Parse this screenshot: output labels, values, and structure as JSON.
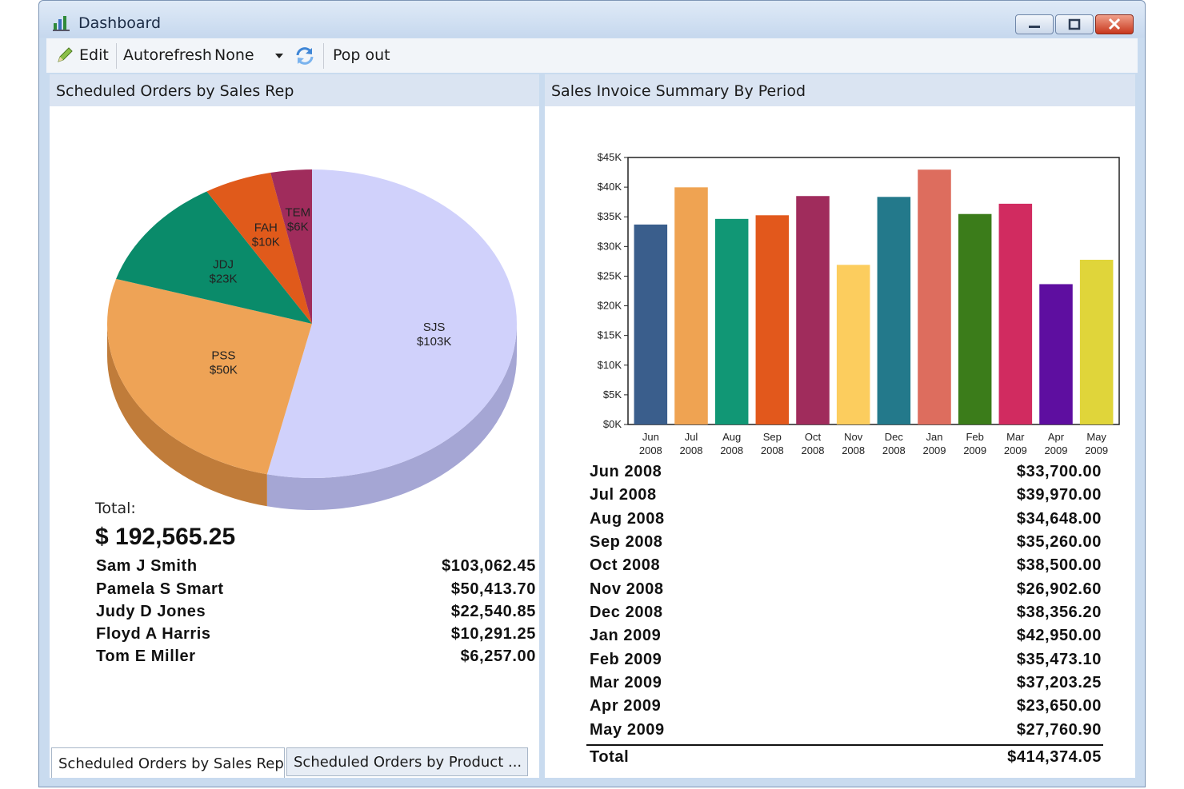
{
  "window": {
    "title": "Dashboard"
  },
  "toolbar": {
    "edit_label": "Edit",
    "autorefresh_label": "Autorefresh",
    "autorefresh_value": "None",
    "popout_label": "Pop out"
  },
  "left_panel": {
    "title": "Scheduled Orders by Sales Rep",
    "total_label": "Total:",
    "total_value": "$ 192,565.25",
    "rows": [
      {
        "name": "Sam J Smith",
        "amount": "$103,062.45"
      },
      {
        "name": "Pamela S Smart",
        "amount": "$50,413.70"
      },
      {
        "name": "Judy D Jones",
        "amount": "$22,540.85"
      },
      {
        "name": "Floyd A Harris",
        "amount": "$10,291.25"
      },
      {
        "name": "Tom E Miller",
        "amount": "$6,257.00"
      }
    ]
  },
  "right_panel": {
    "title": "Sales Invoice Summary By Period",
    "rows": [
      {
        "period": "Jun 2008",
        "amount": "$33,700.00"
      },
      {
        "period": "Jul 2008",
        "amount": "$39,970.00"
      },
      {
        "period": "Aug 2008",
        "amount": "$34,648.00"
      },
      {
        "period": "Sep 2008",
        "amount": "$35,260.00"
      },
      {
        "period": "Oct 2008",
        "amount": "$38,500.00"
      },
      {
        "period": "Nov 2008",
        "amount": "$26,902.60"
      },
      {
        "period": "Dec 2008",
        "amount": "$38,356.20"
      },
      {
        "period": "Jan 2009",
        "amount": "$42,950.00"
      },
      {
        "period": "Feb 2009",
        "amount": "$35,473.10"
      },
      {
        "period": "Mar 2009",
        "amount": "$37,203.25"
      },
      {
        "period": "Apr 2009",
        "amount": "$23,650.00"
      },
      {
        "period": "May 2009",
        "amount": "$27,760.90"
      }
    ],
    "total_label": "Total",
    "total_value": "$414,374.05"
  },
  "tabs": [
    {
      "label": "Scheduled Orders by Sales Rep"
    },
    {
      "label": "Scheduled Orders by Product ..."
    }
  ],
  "chart_data": [
    {
      "type": "pie",
      "labels": [
        "SJS",
        "PSS",
        "JDJ",
        "FAH",
        "TEM"
      ],
      "value_labels": [
        "$103K",
        "$50K",
        "$23K",
        "$10K",
        "$6K"
      ],
      "values": [
        103062.45,
        50413.7,
        22540.85,
        10291.25,
        6257.0
      ],
      "colors": [
        "#d0d1fb",
        "#eea356",
        "#0a8b6a",
        "#e05a1b",
        "#a02c5c"
      ],
      "side_colors": [
        "#a5a6d4",
        "#c07c3a",
        "#06614a",
        "#a8400f",
        "#701d40"
      ]
    },
    {
      "type": "bar",
      "categories": [
        [
          "Jun",
          "2008"
        ],
        [
          "Jul",
          "2008"
        ],
        [
          "Aug",
          "2008"
        ],
        [
          "Sep",
          "2008"
        ],
        [
          "Oct",
          "2008"
        ],
        [
          "Nov",
          "2008"
        ],
        [
          "Dec",
          "2008"
        ],
        [
          "Jan",
          "2009"
        ],
        [
          "Feb",
          "2009"
        ],
        [
          "Mar",
          "2009"
        ],
        [
          "Apr",
          "2009"
        ],
        [
          "May",
          "2009"
        ]
      ],
      "values": [
        33700.0,
        39970.0,
        34648.0,
        35260.0,
        38500.0,
        26902.6,
        38356.2,
        42950.0,
        35473.1,
        37203.25,
        23650.0,
        27760.9
      ],
      "colors": [
        "#3a5e8c",
        "#efa352",
        "#119775",
        "#e2581c",
        "#a02c5c",
        "#fccd5e",
        "#23798b",
        "#dd6d5e",
        "#3b7c1a",
        "#d12b60",
        "#5e0ea0",
        "#e0d53a"
      ],
      "yticks": [
        "$0K",
        "$5K",
        "$10K",
        "$15K",
        "$20K",
        "$25K",
        "$30K",
        "$35K",
        "$40K",
        "$45K"
      ],
      "ylim": [
        0,
        45000
      ],
      "grid": false
    }
  ]
}
